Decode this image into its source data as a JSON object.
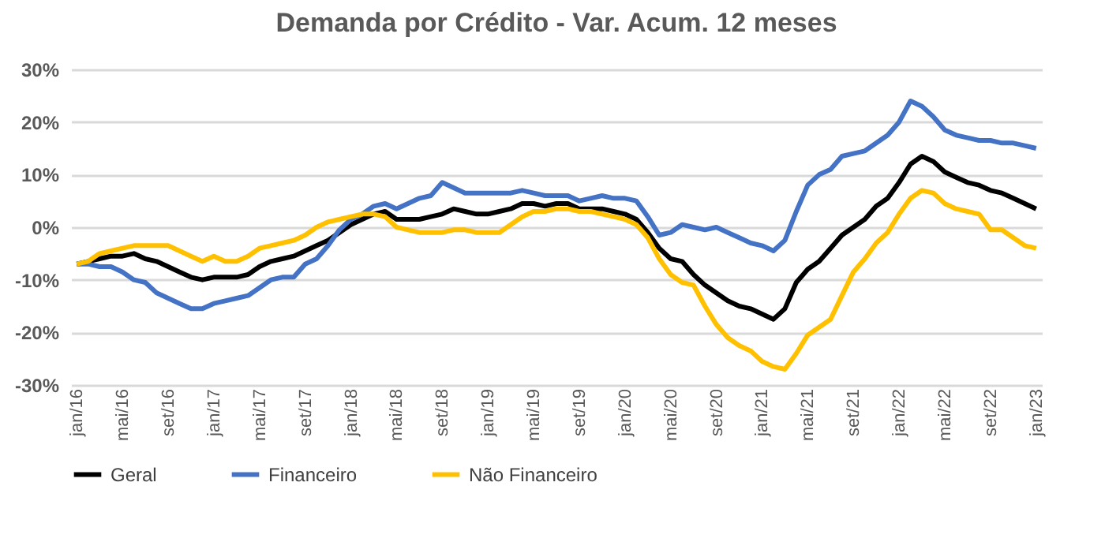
{
  "chart_data": {
    "type": "line",
    "title": "Demanda por Crédito - Var. Acum. 12 meses",
    "categories": [
      "jan/16",
      null,
      null,
      null,
      "mai/16",
      null,
      null,
      null,
      "set/16",
      null,
      null,
      null,
      "jan/17",
      null,
      null,
      null,
      "mai/17",
      null,
      null,
      null,
      "set/17",
      null,
      null,
      null,
      "jan/18",
      null,
      null,
      null,
      "mai/18",
      null,
      null,
      null,
      "set/18",
      null,
      null,
      null,
      "jan/19",
      null,
      null,
      null,
      "mai/19",
      null,
      null,
      null,
      "set/19",
      null,
      null,
      null,
      "jan/20",
      null,
      null,
      null,
      "mai/20",
      null,
      null,
      null,
      "set/20",
      null,
      null,
      null,
      "jan/21",
      null,
      null,
      null,
      "mai/21",
      null,
      null,
      null,
      "set/21",
      null,
      null,
      null,
      "jan/22",
      null,
      null,
      null,
      "mai/22",
      null,
      null,
      null,
      "set/22",
      null,
      null,
      null,
      "jan/23"
    ],
    "series": [
      {
        "name": "Geral",
        "color": "#000000",
        "values": [
          -7,
          -6.5,
          -6,
          -5.5,
          -5.5,
          -5,
          -6,
          -6.5,
          -7.5,
          -8.5,
          -9.5,
          -10,
          -9.5,
          -9.5,
          -9.5,
          -9,
          -7.5,
          -6.5,
          -6,
          -5.5,
          -4.5,
          -3.5,
          -2.5,
          -1,
          0.5,
          1.5,
          2.5,
          3,
          1.5,
          1.5,
          1.5,
          2,
          2.5,
          3.5,
          3,
          2.5,
          2.5,
          3,
          3.5,
          4.5,
          4.5,
          4,
          4.5,
          4.5,
          3.5,
          3.5,
          3.5,
          3,
          2.5,
          1.5,
          -1,
          -4,
          -6,
          -6.5,
          -9,
          -11,
          -12.5,
          -14,
          -15,
          -15.5,
          -16.5,
          -17.5,
          -15.5,
          -10.5,
          -8,
          -6.5,
          -4,
          -1.5,
          0,
          1.5,
          4,
          5.5,
          8.5,
          12,
          13.5,
          12.5,
          10.5,
          9.5,
          8.5,
          8,
          7,
          6.5,
          5.5,
          4.5,
          3.5
        ]
      },
      {
        "name": "Financeiro",
        "color": "#4472c4",
        "values": [
          -7,
          -7,
          -7.5,
          -7.5,
          -8.5,
          -10,
          -10.5,
          -12.5,
          -13.5,
          -14.5,
          -15.5,
          -15.5,
          -14.5,
          -14,
          -13.5,
          -13,
          -11.5,
          -10,
          -9.5,
          -9.5,
          -7,
          -6,
          -3.5,
          -0.5,
          1.5,
          2.5,
          4,
          4.5,
          3.5,
          4.5,
          5.5,
          6,
          8.5,
          7.5,
          6.5,
          6.5,
          6.5,
          6.5,
          6.5,
          7,
          6.5,
          6,
          6,
          6,
          5,
          5.5,
          6,
          5.5,
          5.5,
          5,
          2,
          -1.5,
          -1,
          0.5,
          0,
          -0.5,
          0,
          -1,
          -2,
          -3,
          -3.5,
          -4.5,
          -2.5,
          3,
          8,
          10,
          11,
          13.5,
          14,
          14.5,
          16,
          17.5,
          20,
          24,
          23,
          21,
          18.5,
          17.5,
          17,
          16.5,
          16.5,
          16,
          16,
          15.5,
          15
        ]
      },
      {
        "name": "Não Financeiro",
        "color": "#ffc000",
        "values": [
          -7,
          -6.5,
          -5,
          -4.5,
          -4,
          -3.5,
          -3.5,
          -3.5,
          -3.5,
          -4.5,
          -5.5,
          -6.5,
          -5.5,
          -6.5,
          -6.5,
          -5.5,
          -4,
          -3.5,
          -3,
          -2.5,
          -1.5,
          0,
          1,
          1.5,
          2,
          2.5,
          2.5,
          2,
          0,
          -0.5,
          -1,
          -1,
          -1,
          -0.5,
          -0.5,
          -1,
          -1,
          -1,
          0.5,
          2,
          3,
          3,
          3.5,
          3.5,
          3,
          3,
          2.5,
          2,
          1.5,
          0.5,
          -2,
          -6,
          -9,
          -10.5,
          -11,
          -15,
          -18.5,
          -21,
          -22.5,
          -23.5,
          -25.5,
          -26.5,
          -27,
          -24,
          -20.5,
          -19,
          -17.5,
          -13,
          -8.5,
          -6,
          -3,
          -1,
          2.5,
          5.5,
          7,
          6.5,
          4.5,
          3.5,
          3,
          2.5,
          -0.5,
          -0.5,
          -2,
          -3.5,
          -4
        ]
      }
    ],
    "ylim": [
      -30,
      30
    ],
    "yticks": [
      {
        "value": -30,
        "label": "-30%"
      },
      {
        "value": -20,
        "label": "-20%"
      },
      {
        "value": -10,
        "label": "-10%"
      },
      {
        "value": 0,
        "label": "0%"
      },
      {
        "value": 10,
        "label": "10%"
      },
      {
        "value": 20,
        "label": "20%"
      },
      {
        "value": 30,
        "label": "30%"
      }
    ],
    "grid": "y",
    "legend": "bottom",
    "marker": "none",
    "line_style": "solid"
  }
}
